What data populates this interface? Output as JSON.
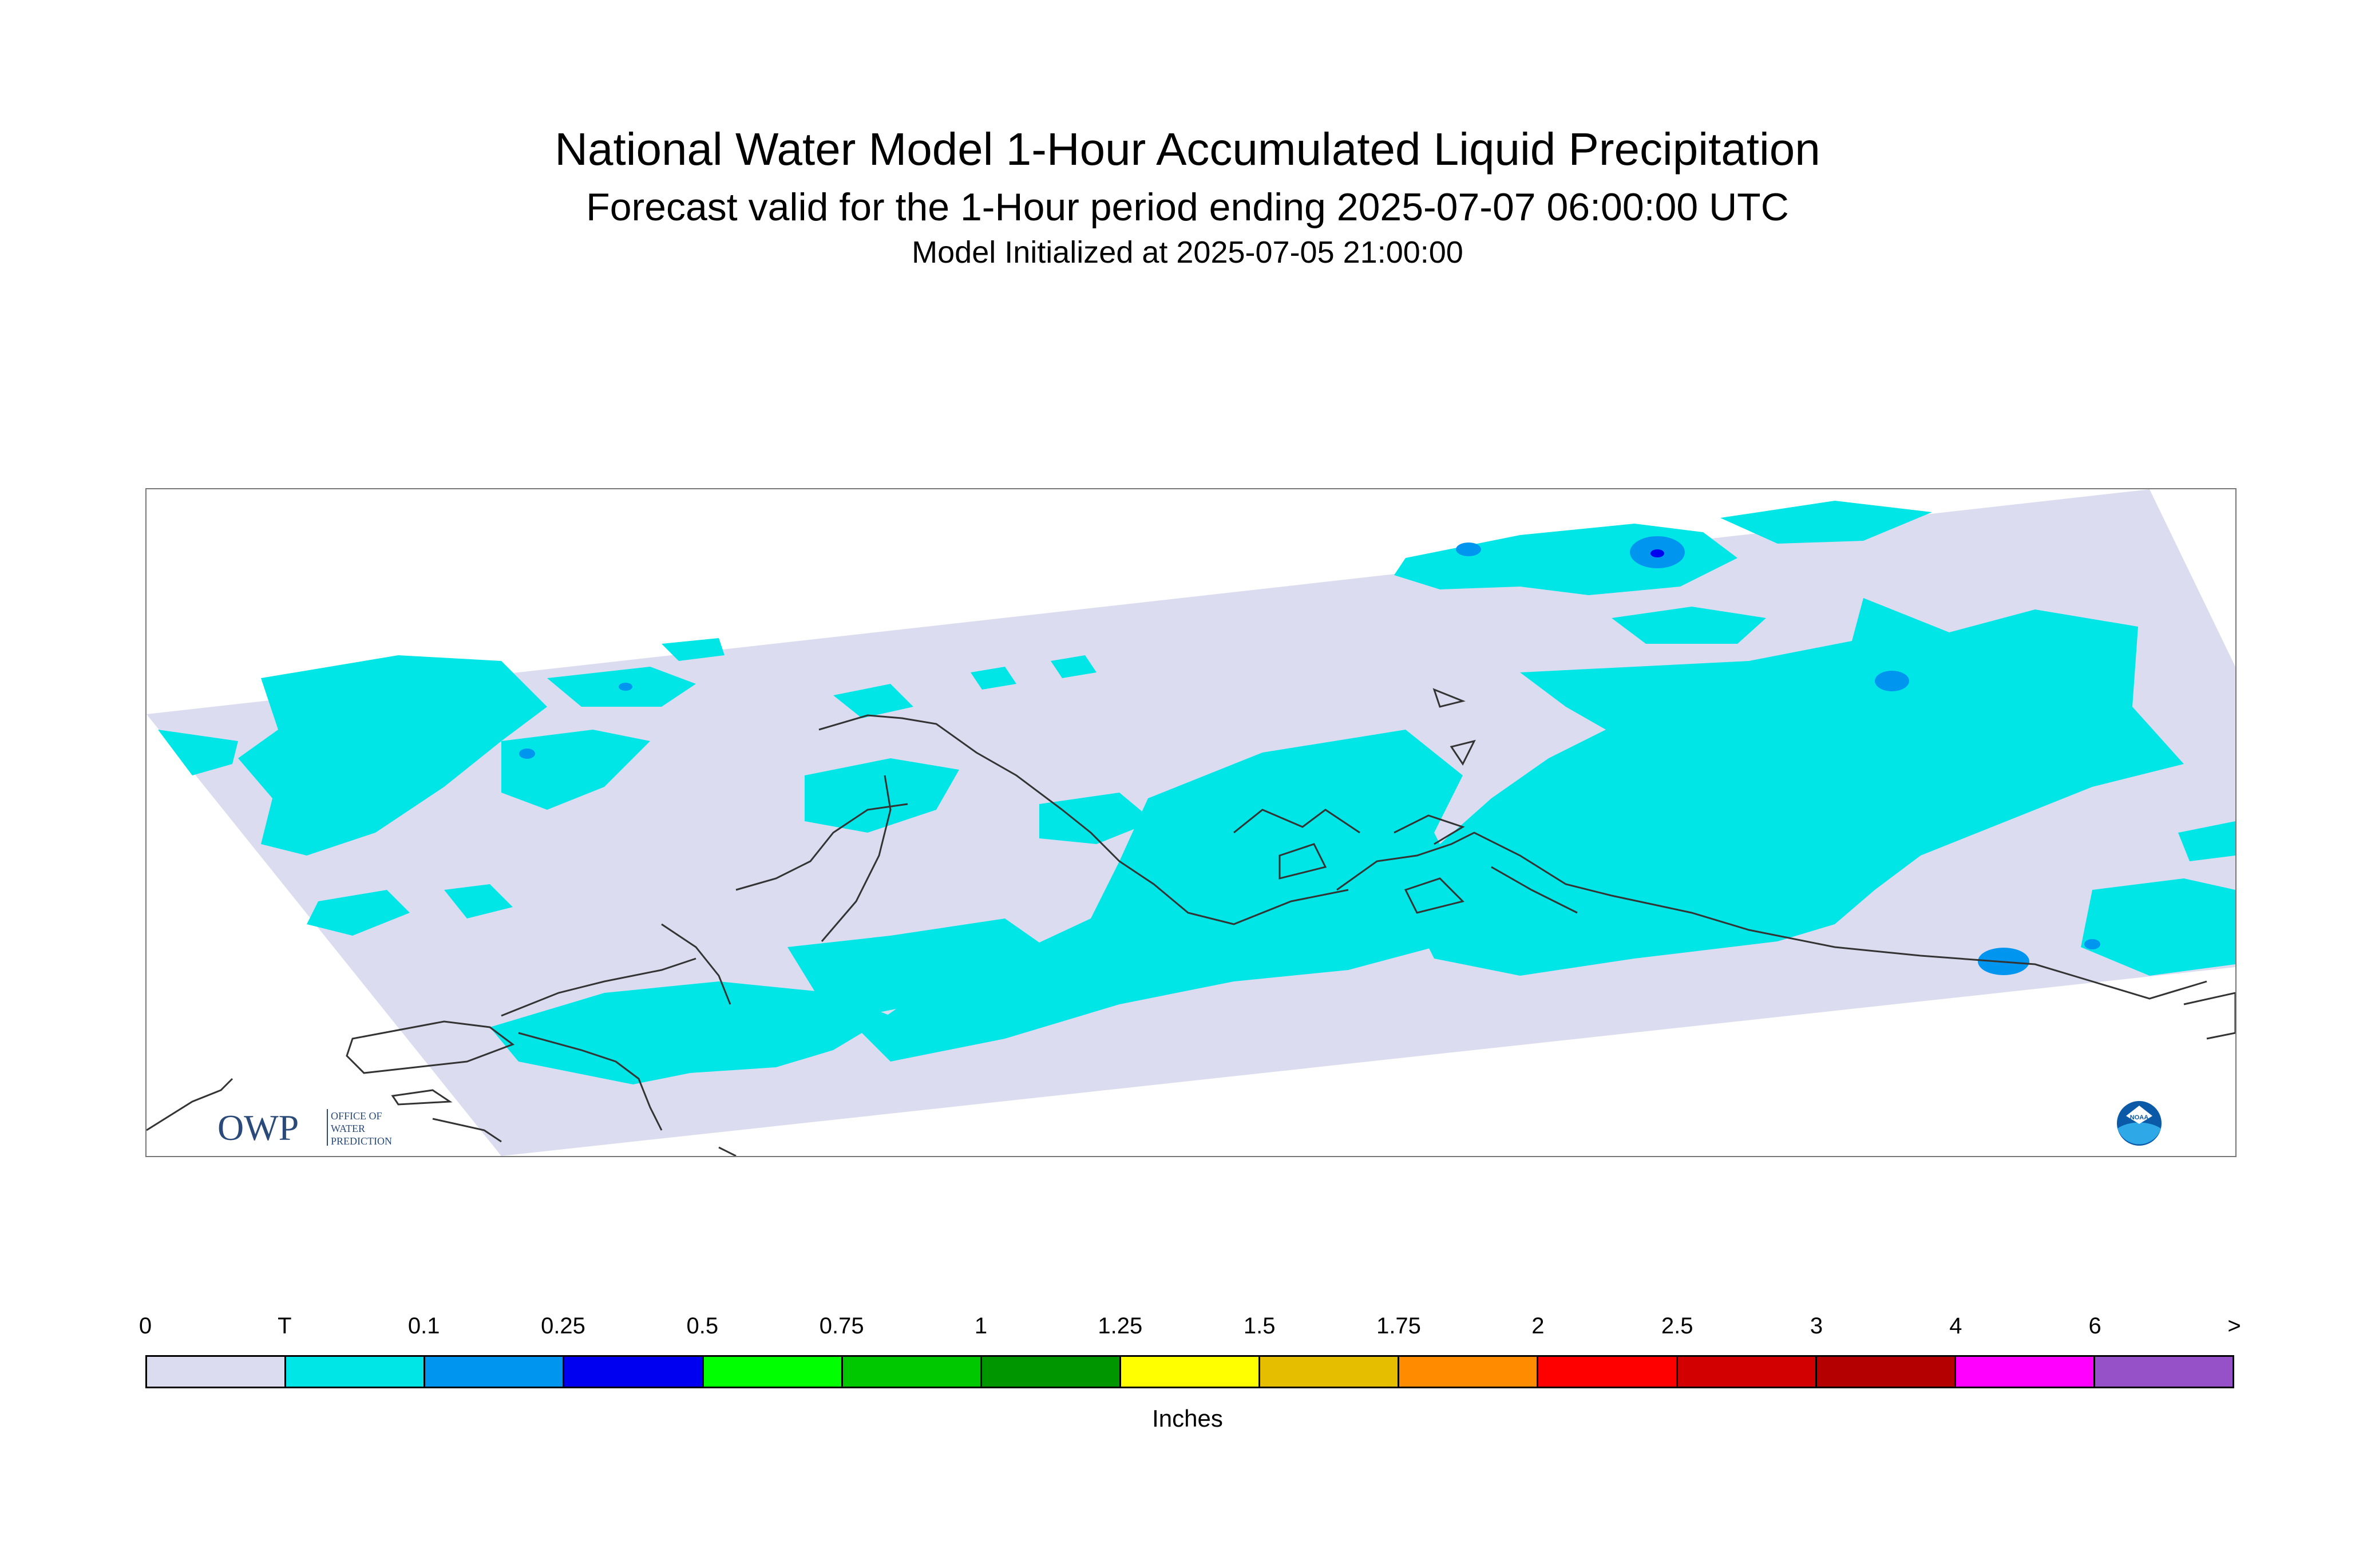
{
  "title": "National Water Model 1-Hour Accumulated Liquid Precipitation",
  "subtitle": "Forecast valid for the 1-Hour period ending 2025-07-07 06:00:00 UTC",
  "init": "Model Initialized at 2025-07-05 21:00:00",
  "legend": {
    "labels": [
      "0",
      "T",
      "0.1",
      "0.25",
      "0.5",
      "0.75",
      "1",
      "1.25",
      "1.5",
      "1.75",
      "2",
      "2.5",
      "3",
      "4",
      "6",
      ">"
    ],
    "colors": [
      "#dcdcf0",
      "#00e6e6",
      "#0096f0",
      "#0000f0",
      "#00ff00",
      "#00c800",
      "#009600",
      "#ffff00",
      "#e6be00",
      "#ff8c00",
      "#ff0000",
      "#d20000",
      "#b40000",
      "#ff00ff",
      "#9650c8"
    ],
    "units": "Inches"
  },
  "colors": {
    "domain_background": "#dcdcf0",
    "trace": "#00e6e6",
    "light_rain": "#0096f0",
    "moderate_rain": "#0000f0"
  },
  "logos": {
    "owp_main": "OWP",
    "owp_lines": [
      "OFFICE OF",
      "WATER",
      "PREDICTION"
    ],
    "noaa": "NOAA"
  }
}
